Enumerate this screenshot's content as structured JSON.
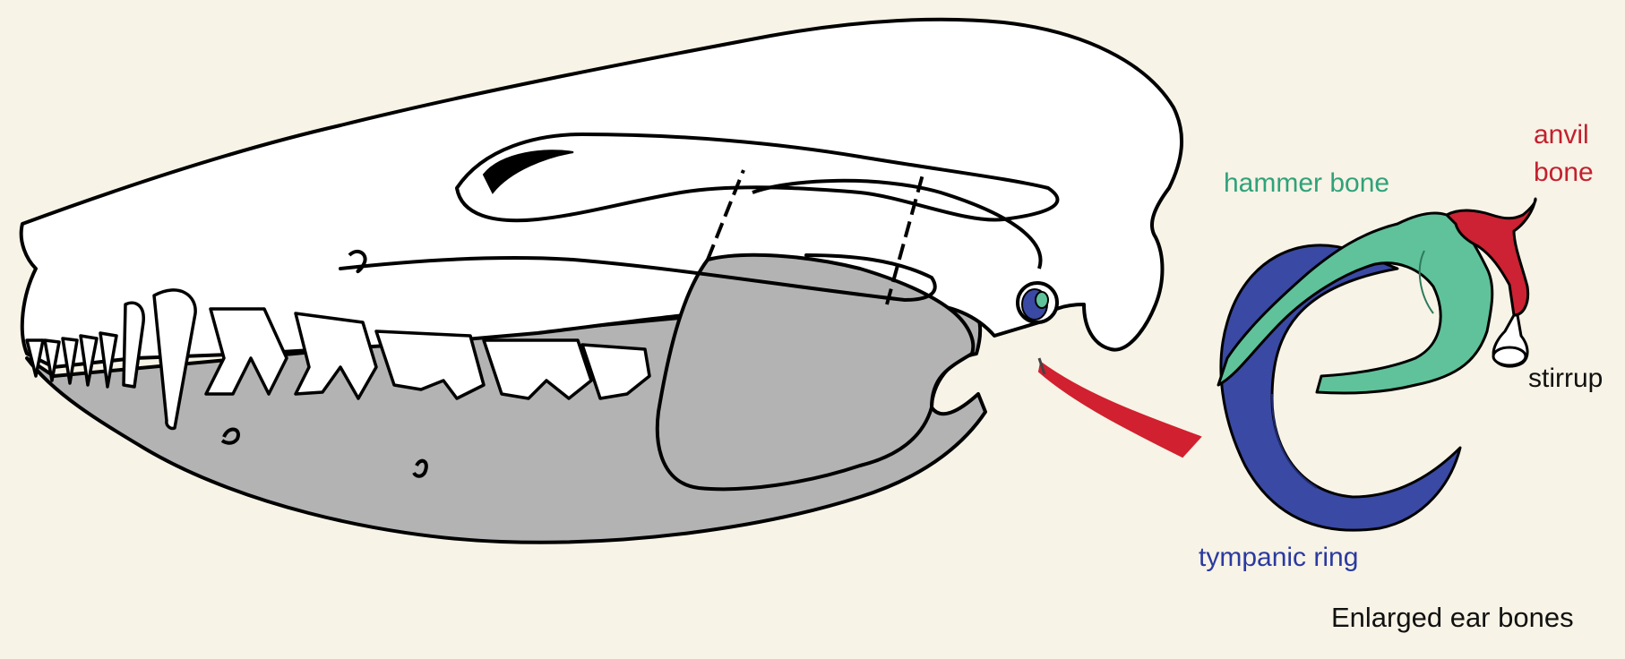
{
  "labels": {
    "hammer_bone": "hammer bone",
    "anvil_line1": "anvil",
    "anvil_line2": "bone",
    "stirrup": "stirrup",
    "tympanic_ring": "tympanic ring"
  },
  "caption": "Enlarged ear bones",
  "colors": {
    "background": "#f7f3e6",
    "jaw_gray": "#b3b3b3",
    "light_gray": "#dcdcdc",
    "outline": "#000000",
    "hammer_green": "#5fc29a",
    "anvil_red": "#cc2233",
    "tympanic_blue": "#3a49a3",
    "arrow_red": "#d1202f",
    "label_dark": "#111111"
  }
}
